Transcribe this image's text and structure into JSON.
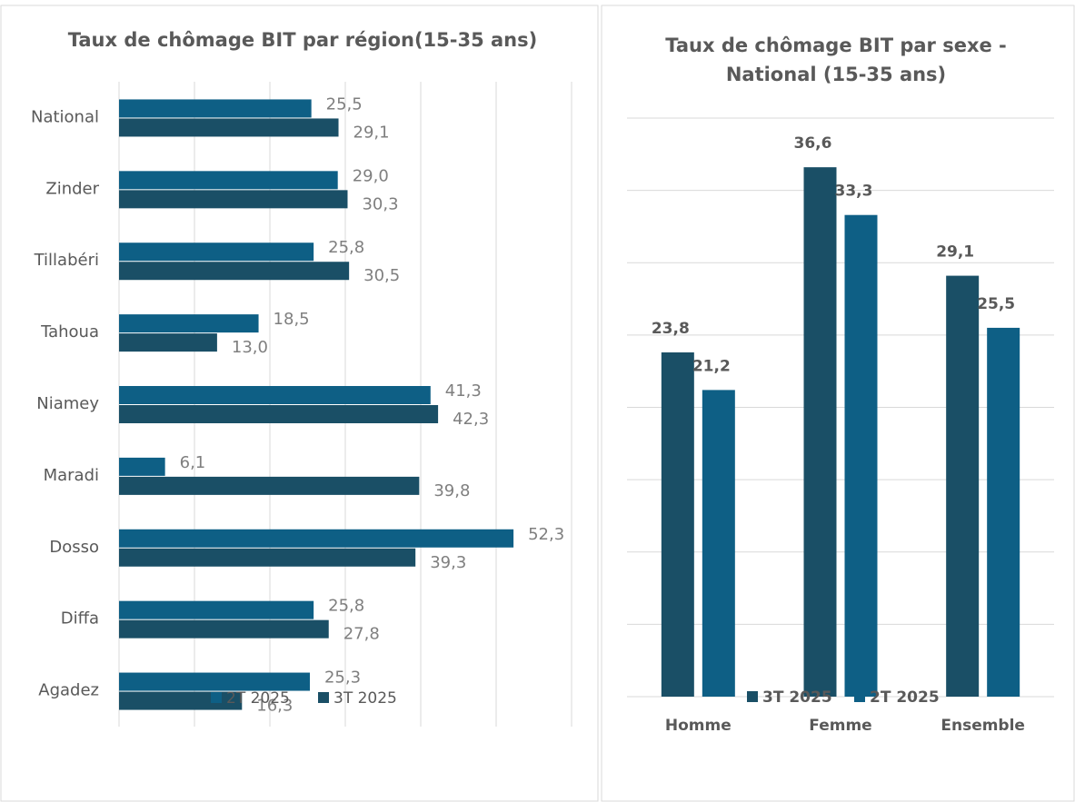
{
  "chart_data": [
    {
      "type": "bar",
      "horizontal": true,
      "title": "Taux de chômage BIT par région(15-35 ans)",
      "categories": [
        "National",
        "Zinder",
        "Tillabéri",
        "Tahoua",
        "Niamey",
        "Maradi",
        "Dosso",
        "Diffa",
        "Agadez"
      ],
      "series": [
        {
          "name": "2T 2025",
          "color": "#0e5f85",
          "values": [
            25.5,
            29.0,
            25.8,
            18.5,
            41.3,
            6.1,
            52.3,
            25.8,
            25.3
          ],
          "value_labels": [
            "25,5",
            "29,0",
            "25,8",
            "18,5",
            "41,3",
            "6,1",
            "52,3",
            "25,8",
            "25,3"
          ]
        },
        {
          "name": "3T 2025",
          "color": "#1a4f66",
          "values": [
            29.1,
            30.3,
            30.5,
            13.0,
            42.3,
            39.8,
            39.3,
            27.8,
            16.3
          ],
          "value_labels": [
            "29,1",
            "30,3",
            "30,5",
            "13,0",
            "42,3",
            "39,8",
            "39,3",
            "27,8",
            "16,3"
          ]
        }
      ],
      "xlim": [
        0,
        60
      ],
      "xticks": [
        0,
        10,
        20,
        30,
        40,
        50,
        60
      ],
      "grid": true,
      "legend": "bottom"
    },
    {
      "type": "bar",
      "horizontal": false,
      "title": "Taux de chômage BIT par sexe - National (15-35 ans)",
      "categories": [
        "Homme",
        "Femme",
        "Ensemble"
      ],
      "series": [
        {
          "name": "3T 2025",
          "color": "#1a4f66",
          "values": [
            23.8,
            36.6,
            29.1
          ],
          "value_labels": [
            "23,8",
            "36,6",
            "29,1"
          ]
        },
        {
          "name": "2T 2025",
          "color": "#0e5f85",
          "values": [
            21.2,
            33.3,
            25.5
          ],
          "value_labels": [
            "21,2",
            "33,3",
            "25,5"
          ]
        }
      ],
      "ylim": [
        0,
        40
      ],
      "yticks": [
        0,
        5,
        10,
        15,
        20,
        25,
        30,
        35,
        40
      ],
      "grid": true,
      "legend": "bottom"
    }
  ]
}
